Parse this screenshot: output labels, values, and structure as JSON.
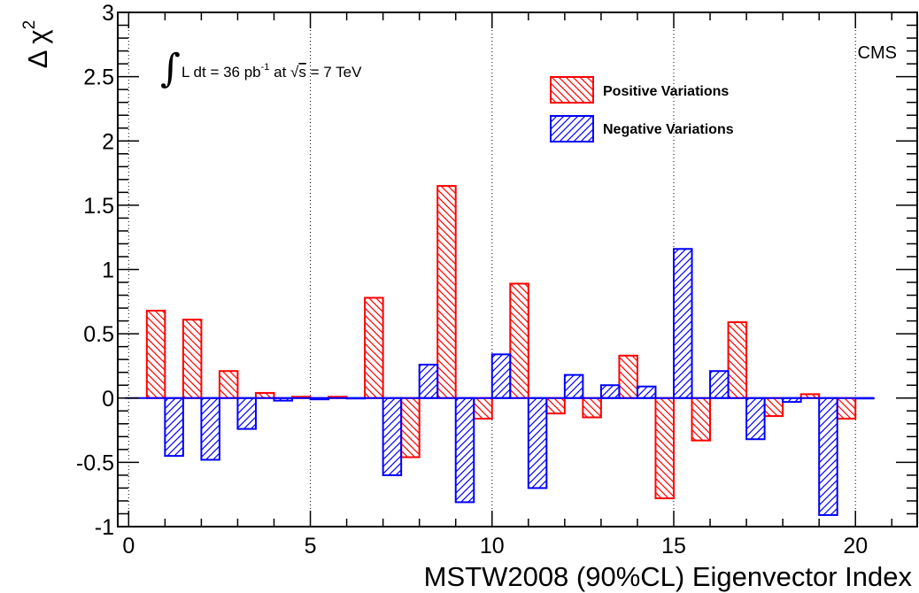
{
  "chart_data": {
    "type": "bar",
    "xlabel": "MSTW2008 (90%CL) Eigenvector Index",
    "ylabel": "Δ χ",
    "ylabel_sup": "2",
    "xlim": [
      -0.3,
      21.7
    ],
    "ylim": [
      -1,
      3
    ],
    "x_ticks": [
      "0",
      "5",
      "10",
      "15",
      "20"
    ],
    "y_ticks": [
      "-1",
      "-0.5",
      "0",
      "0.5",
      "1",
      "1.5",
      "2",
      "2.5",
      "3"
    ],
    "vertical_dotted_lines_at": [
      0,
      5,
      10,
      15,
      20
    ],
    "experiment_label": "CMS",
    "lumi_label": {
      "integral_sign": "∫",
      "text_before": "L dt = 36 pb",
      "sup": "-1",
      "text_mid": " at ",
      "sqrt_sign": "√",
      "sqrt_arg": "s",
      "text_after": " = 7 TeV"
    },
    "legend_placement": "top-right",
    "categories": [
      1,
      2,
      3,
      4,
      5,
      6,
      7,
      8,
      9,
      10,
      11,
      12,
      13,
      14,
      15,
      16,
      17,
      18,
      19,
      20
    ],
    "series": [
      {
        "name": "Positive Variations",
        "color": "#ff0000",
        "hatch": "backslash",
        "values": [
          0.68,
          0.61,
          0.21,
          0.04,
          0.01,
          0.01,
          0.78,
          -0.46,
          1.65,
          -0.16,
          0.89,
          -0.12,
          -0.15,
          0.33,
          -0.78,
          -0.33,
          0.59,
          -0.14,
          0.03,
          -0.16
        ]
      },
      {
        "name": "Negative Variations",
        "color": "#0000ff",
        "hatch": "slash",
        "values": [
          -0.45,
          -0.48,
          -0.24,
          -0.02,
          -0.01,
          0.0,
          -0.6,
          0.26,
          -0.81,
          0.34,
          -0.7,
          0.18,
          0.1,
          0.09,
          1.16,
          0.21,
          -0.32,
          -0.03,
          -0.91,
          0.0
        ]
      }
    ]
  }
}
